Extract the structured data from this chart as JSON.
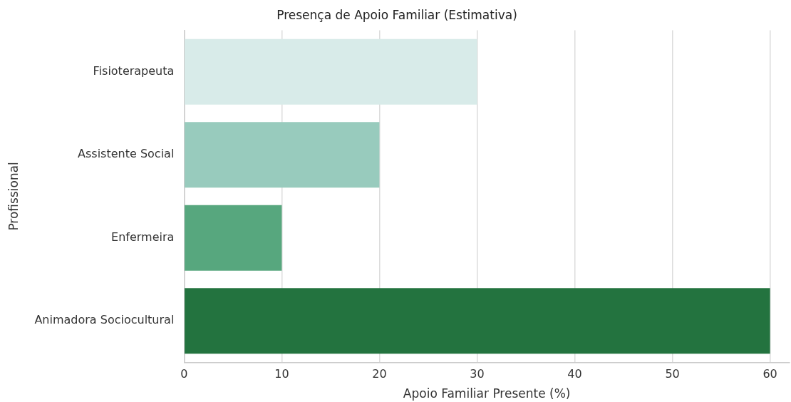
{
  "chart_data": {
    "type": "bar",
    "orientation": "horizontal",
    "title": "Presença de Apoio Familiar (Estimativa)",
    "xlabel": "Apoio Familiar Presente (%)",
    "ylabel": "Profissional",
    "categories": [
      "Fisioterapeuta",
      "Assistente Social",
      "Enfermeira",
      "Animadora Sociocultural"
    ],
    "values": [
      30,
      20,
      10,
      60
    ],
    "colors": [
      "#d8ebe9",
      "#98cbbd",
      "#57a77e",
      "#23733f"
    ],
    "xlim": [
      0,
      62
    ],
    "xticks": [
      0,
      10,
      20,
      30,
      40,
      50,
      60
    ],
    "grid": "x",
    "legend": false
  }
}
